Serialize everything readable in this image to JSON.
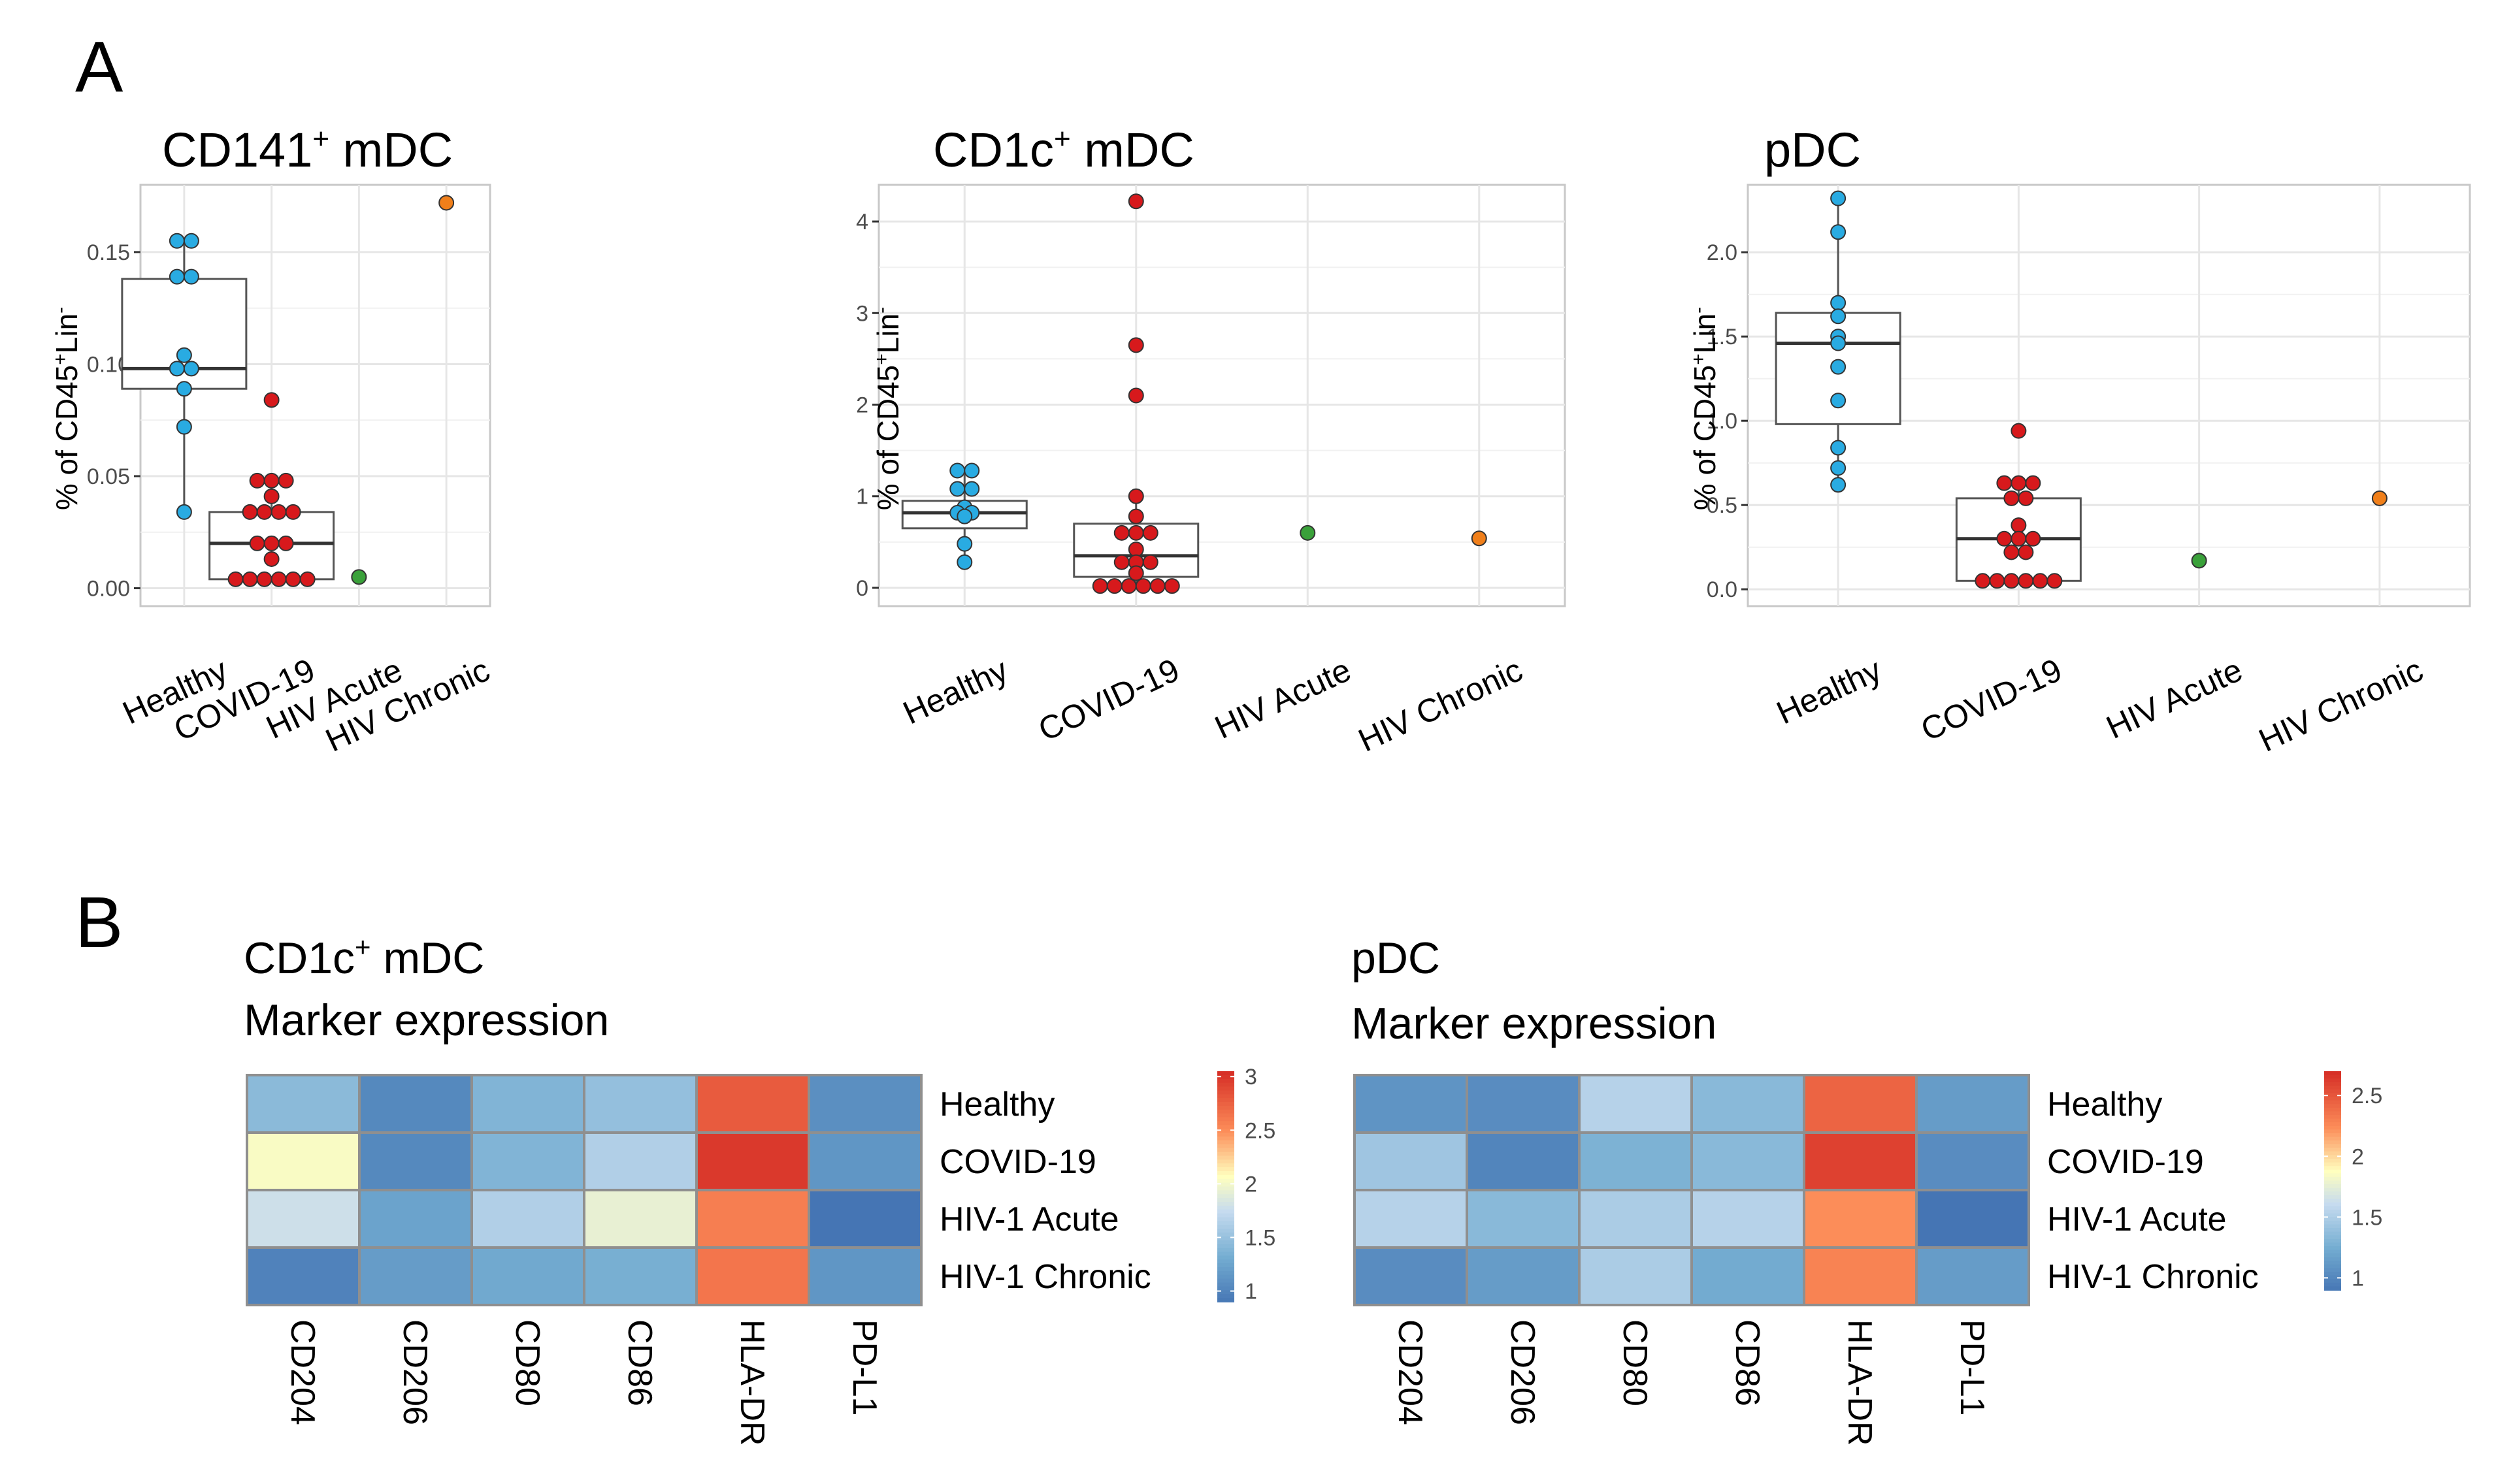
{
  "panel_labels": {
    "a": "A",
    "b": "B"
  },
  "scatter_categories": [
    "Healthy",
    "COVID-19",
    "HIV Acute",
    "HIV Chronic"
  ],
  "colors": {
    "Healthy": "#29ABE2",
    "COVID-19": "#D7191C",
    "HIV Acute": "#3AA13A",
    "HIV Chronic": "#F07F1A"
  },
  "chart_data": [
    {
      "type": "box-dot",
      "title_main": "CD141",
      "title_sup": "+",
      "title_rest": " mDC",
      "ylabel_main": "% of CD45",
      "ylabel_sup1": "+",
      "ylabel_mid": "Lin",
      "ylabel_sup2": "-",
      "ylim": [
        -0.008,
        0.18
      ],
      "yticks": [
        0.0,
        0.05,
        0.1,
        0.15
      ],
      "ytick_labels": [
        "0.00",
        "0.05",
        "0.10",
        "0.15"
      ],
      "categories": [
        "Healthy",
        "COVID-19",
        "HIV Acute",
        "HIV Chronic"
      ],
      "boxes": [
        {
          "category": "Healthy",
          "q1": 0.089,
          "median": 0.098,
          "q3": 0.138,
          "whisker_low": 0.034,
          "whisker_high": 0.155
        },
        {
          "category": "COVID-19",
          "q1": 0.004,
          "median": 0.02,
          "q3": 0.034,
          "whisker_low": 0.004,
          "whisker_high": 0.048
        }
      ],
      "points": {
        "Healthy": [
          0.155,
          0.155,
          0.139,
          0.139,
          0.104,
          0.098,
          0.098,
          0.089,
          0.072,
          0.034
        ],
        "COVID-19": [
          0.084,
          0.048,
          0.048,
          0.048,
          0.041,
          0.034,
          0.034,
          0.034,
          0.034,
          0.02,
          0.02,
          0.02,
          0.013,
          0.004,
          0.004,
          0.004,
          0.004,
          0.004,
          0.004
        ],
        "HIV Acute": [
          0.005
        ],
        "HIV Chronic": [
          0.172
        ]
      }
    },
    {
      "type": "box-dot",
      "title_main": "CD1c",
      "title_sup": "+",
      "title_rest": " mDC",
      "ylabel_main": "% of CD45",
      "ylabel_sup1": "+",
      "ylabel_mid": "Lin",
      "ylabel_sup2": "-",
      "ylim": [
        -0.2,
        4.4
      ],
      "yticks": [
        0,
        1,
        2,
        3,
        4
      ],
      "ytick_labels": [
        "0",
        "1",
        "2",
        "3",
        "4"
      ],
      "categories": [
        "Healthy",
        "COVID-19",
        "HIV Acute",
        "HIV Chronic"
      ],
      "boxes": [
        {
          "category": "Healthy",
          "q1": 0.65,
          "median": 0.82,
          "q3": 0.95,
          "whisker_low": 0.28,
          "whisker_high": 1.28
        },
        {
          "category": "COVID-19",
          "q1": 0.12,
          "median": 0.35,
          "q3": 0.7,
          "whisker_low": 0.02,
          "whisker_high": 1.0
        }
      ],
      "points": {
        "Healthy": [
          1.28,
          1.28,
          1.08,
          1.08,
          0.88,
          0.82,
          0.82,
          0.78,
          0.48,
          0.28
        ],
        "COVID-19": [
          4.22,
          2.65,
          2.1,
          1.0,
          0.78,
          0.6,
          0.6,
          0.6,
          0.42,
          0.28,
          0.28,
          0.28,
          0.16,
          0.02,
          0.02,
          0.02,
          0.02,
          0.02,
          0.02
        ],
        "HIV Acute": [
          0.6
        ],
        "HIV Chronic": [
          0.54
        ]
      }
    },
    {
      "type": "box-dot",
      "title_main": "pDC",
      "title_sup": "",
      "title_rest": "",
      "ylabel_main": "% of CD45",
      "ylabel_sup1": "+",
      "ylabel_mid": "Lin",
      "ylabel_sup2": "-",
      "ylim": [
        -0.1,
        2.4
      ],
      "yticks": [
        0.0,
        0.5,
        1.0,
        1.5,
        2.0
      ],
      "ytick_labels": [
        "0.0",
        "0.5",
        "1.0",
        "1.5",
        "2.0"
      ],
      "categories": [
        "Healthy",
        "COVID-19",
        "HIV Acute",
        "HIV Chronic"
      ],
      "boxes": [
        {
          "category": "Healthy",
          "q1": 0.98,
          "median": 1.46,
          "q3": 1.64,
          "whisker_low": 0.62,
          "whisker_high": 2.32
        },
        {
          "category": "COVID-19",
          "q1": 0.05,
          "median": 0.3,
          "q3": 0.54,
          "whisker_low": 0.05,
          "whisker_high": 0.63
        }
      ],
      "points": {
        "Healthy": [
          2.32,
          2.12,
          1.7,
          1.62,
          1.5,
          1.46,
          1.32,
          1.12,
          0.84,
          0.72,
          0.62
        ],
        "COVID-19": [
          0.94,
          0.63,
          0.63,
          0.63,
          0.54,
          0.54,
          0.38,
          0.3,
          0.3,
          0.3,
          0.22,
          0.22,
          0.05,
          0.05,
          0.05,
          0.05,
          0.05,
          0.05
        ],
        "HIV Acute": [
          0.17
        ],
        "HIV Chronic": [
          0.54
        ]
      }
    },
    {
      "type": "heatmap",
      "title_line1_main": "CD1c",
      "title_line1_sup": "+",
      "title_line1_rest": " mDC",
      "title_line2": "Marker expression",
      "columns": [
        "CD204",
        "CD206",
        "CD80",
        "CD86",
        "HLA-DR",
        "PD-L1"
      ],
      "rows": [
        "Healthy",
        "COVID-19",
        "HIV-1 Acute",
        "HIV-1 Chronic"
      ],
      "values": [
        [
          1.45,
          1.05,
          1.4,
          1.5,
          2.8,
          1.1
        ],
        [
          2.05,
          1.05,
          1.4,
          1.65,
          3.0,
          1.15
        ],
        [
          1.8,
          1.25,
          1.65,
          1.95,
          2.6,
          0.85
        ],
        [
          1.0,
          1.2,
          1.3,
          1.35,
          2.65,
          1.15
        ]
      ],
      "scale_min": 0.9,
      "scale_max": 3.05,
      "legend_ticks": [
        1,
        1.5,
        2,
        2.5,
        3
      ],
      "legend_tick_labels": [
        "1",
        "1.5",
        "2",
        "2.5",
        "3"
      ]
    },
    {
      "type": "heatmap",
      "title_line1_main": "pDC",
      "title_line1_sup": "",
      "title_line1_rest": "",
      "title_line2": "Marker expression",
      "columns": [
        "CD204",
        "CD206",
        "CD80",
        "CD86",
        "HLA-DR",
        "PD-L1"
      ],
      "rows": [
        "Healthy",
        "COVID-19",
        "HIV-1 Acute",
        "HIV-1 Chronic"
      ],
      "values": [
        [
          1.1,
          1.05,
          1.55,
          1.35,
          2.45,
          1.15
        ],
        [
          1.45,
          1.0,
          1.3,
          1.35,
          2.62,
          1.05
        ],
        [
          1.55,
          1.35,
          1.5,
          1.55,
          2.25,
          0.85
        ],
        [
          1.05,
          1.15,
          1.5,
          1.25,
          2.3,
          1.15
        ]
      ],
      "scale_min": 0.9,
      "scale_max": 2.7,
      "legend_ticks": [
        1,
        1.5,
        2,
        2.5
      ],
      "legend_tick_labels": [
        "1",
        "1.5",
        "2",
        "2.5"
      ]
    }
  ]
}
